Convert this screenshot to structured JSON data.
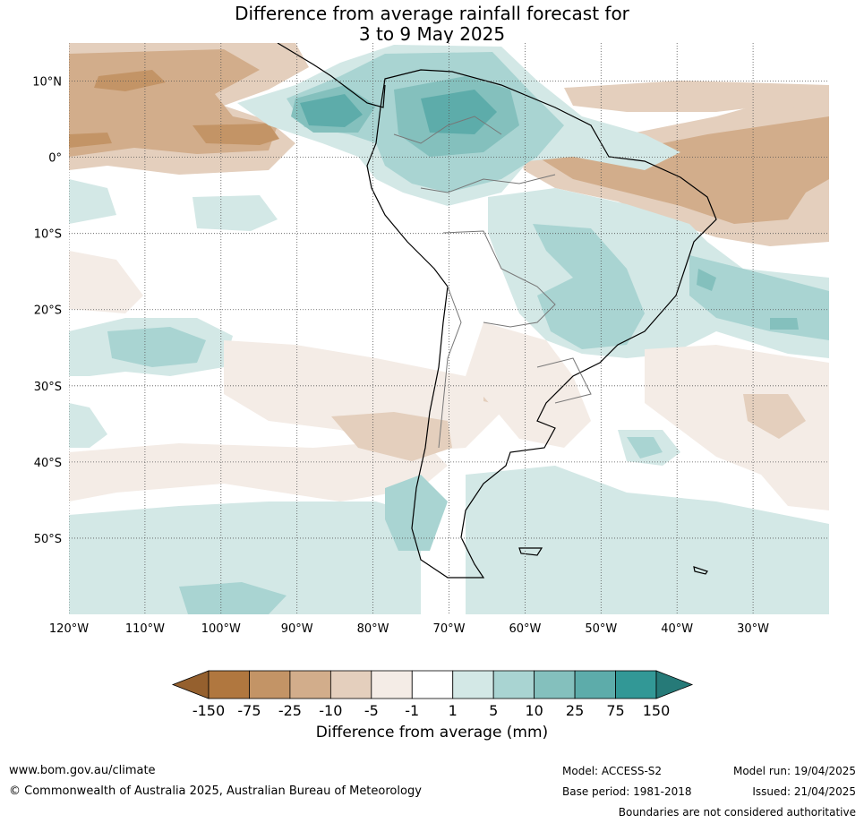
{
  "title": {
    "line1": "Difference from average rainfall forecast for",
    "line2": "3 to 9 May 2025"
  },
  "map": {
    "lon_range": [
      -120,
      -20
    ],
    "lat_range": [
      -60,
      15
    ],
    "lon_ticks": [
      {
        "value": -120,
        "label": "120°W"
      },
      {
        "value": -110,
        "label": "110°W"
      },
      {
        "value": -100,
        "label": "100°W"
      },
      {
        "value": -90,
        "label": "90°W"
      },
      {
        "value": -80,
        "label": "80°W"
      },
      {
        "value": -70,
        "label": "70°W"
      },
      {
        "value": -60,
        "label": "60°W"
      },
      {
        "value": -50,
        "label": "50°W"
      },
      {
        "value": -40,
        "label": "40°W"
      },
      {
        "value": -30,
        "label": "30°W"
      }
    ],
    "lat_ticks": [
      {
        "value": 10,
        "label": "10°N"
      },
      {
        "value": 0,
        "label": "0°"
      },
      {
        "value": -10,
        "label": "10°S"
      },
      {
        "value": -20,
        "label": "20°S"
      },
      {
        "value": -30,
        "label": "30°S"
      },
      {
        "value": -40,
        "label": "40°S"
      },
      {
        "value": -50,
        "label": "50°S"
      }
    ],
    "grid": true
  },
  "legend": {
    "label": "Difference from average (mm)",
    "boundaries": [
      "-150",
      "-75",
      "-25",
      "-10",
      "-5",
      "-1",
      "1",
      "5",
      "10",
      "25",
      "75",
      "150"
    ],
    "colors": [
      "#b0773f",
      "#c39466",
      "#d2ad8b",
      "#e4cfbd",
      "#f4ece6",
      "#ffffff",
      "#d3e8e6",
      "#a9d4d2",
      "#84c0bd",
      "#5dacaa",
      "#329896"
    ],
    "under_color": "#95602e",
    "over_color": "#267a78"
  },
  "footer": {
    "website": "www.bom.gov.au/climate",
    "copyright": "© Commonwealth of Australia 2025, Australian Bureau of Meteorology",
    "model": "Model: ACCESS-S2",
    "base_period": "Base period: 1981-2018",
    "model_run": "Model run: 19/04/2025",
    "issued": "Issued: 21/04/2025",
    "disclaimer": "Boundaries are not considered authoritative"
  }
}
